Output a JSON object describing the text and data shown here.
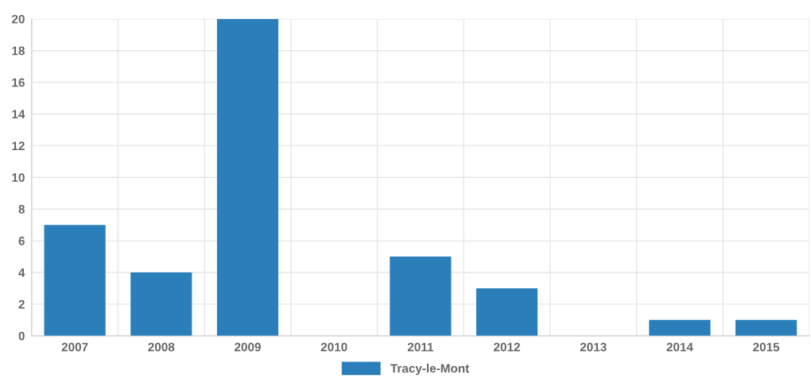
{
  "chart_data": {
    "type": "bar",
    "categories": [
      "2007",
      "2008",
      "2009",
      "2010",
      "2011",
      "2012",
      "2013",
      "2014",
      "2015"
    ],
    "series": [
      {
        "name": "Tracy-le-Mont",
        "color": "#2a7fba",
        "values": [
          7,
          4,
          20,
          0,
          5,
          3,
          0,
          1,
          1
        ]
      }
    ],
    "ylim": [
      0,
      20
    ],
    "yticks": [
      0,
      2,
      4,
      6,
      8,
      10,
      12,
      14,
      16,
      18,
      20
    ],
    "grid": true,
    "legend": "bottom"
  }
}
